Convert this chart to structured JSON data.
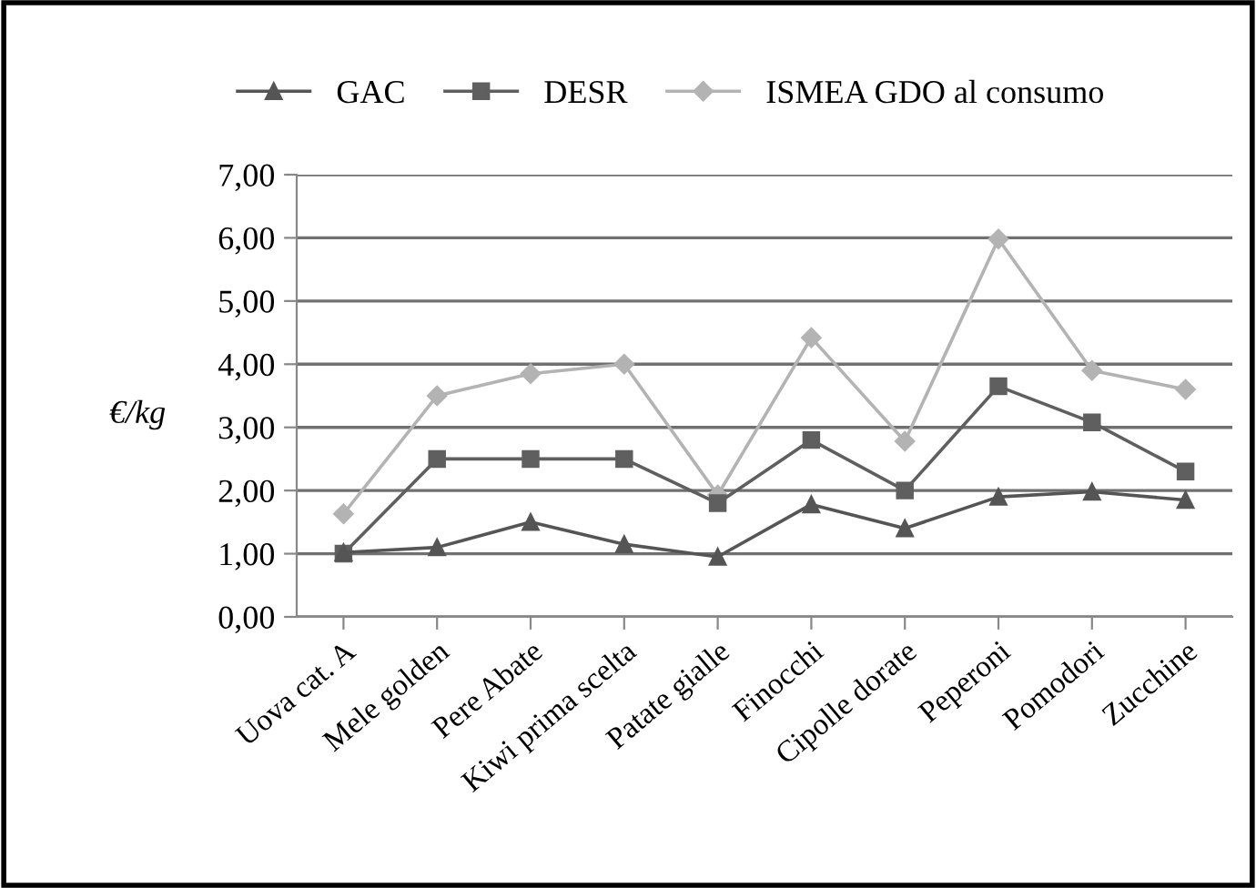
{
  "chart_data": {
    "type": "line",
    "ylabel": "€/kg",
    "categories": [
      "Uova cat. A",
      "Mele golden",
      "Pere Abate",
      "Kiwi prima scelta",
      "Patate gialle",
      "Finocchi",
      "Cipolle dorate",
      "Peperoni",
      "Pomodori",
      "Zucchine"
    ],
    "series": [
      {
        "name": "GAC",
        "color": "#555555",
        "marker": "triangle",
        "values": [
          1.02,
          1.1,
          1.5,
          1.15,
          0.95,
          1.78,
          1.4,
          1.9,
          1.98,
          1.85
        ]
      },
      {
        "name": "DESR",
        "color": "#5f5f5f",
        "marker": "square",
        "values": [
          1.0,
          2.5,
          2.5,
          2.5,
          1.8,
          2.8,
          2.0,
          3.65,
          3.08,
          2.3
        ]
      },
      {
        "name": "ISMEA GDO al consumo",
        "color": "#b3b3b3",
        "marker": "diamond",
        "values": [
          1.63,
          3.5,
          3.85,
          4.0,
          1.93,
          4.42,
          2.78,
          5.98,
          3.9,
          3.6
        ]
      }
    ],
    "ylim": [
      0,
      7
    ],
    "yticks": [
      {
        "value": 0,
        "label": "0,00"
      },
      {
        "value": 1,
        "label": "1,00"
      },
      {
        "value": 2,
        "label": "2,00"
      },
      {
        "value": 3,
        "label": "3,00"
      },
      {
        "value": 4,
        "label": "4,00"
      },
      {
        "value": 5,
        "label": "5,00"
      },
      {
        "value": 6,
        "label": "6,00"
      },
      {
        "value": 7,
        "label": "7,00"
      }
    ],
    "grid": "y",
    "legend": "top",
    "line_style": "solid"
  }
}
